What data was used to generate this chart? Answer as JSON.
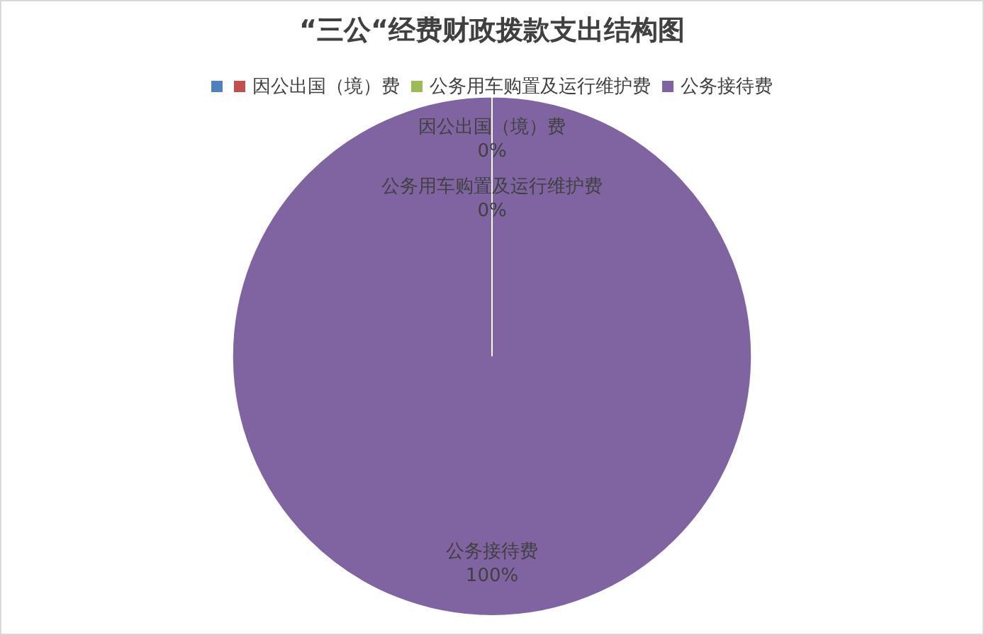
{
  "chart_data": {
    "type": "pie",
    "title": "“三公“经费财政拨款支出结构图",
    "categories": [
      null,
      "因公出国（境）费",
      "公务用车购置及运行维护费",
      "公务接待费"
    ],
    "values": [
      0,
      0,
      0,
      100
    ],
    "colors": [
      "#4f81bd",
      "#c0504d",
      "#9bbb59",
      "#8064a2"
    ],
    "value_labels": [
      null,
      "0%",
      "0%",
      "100%"
    ],
    "legend": "top"
  }
}
